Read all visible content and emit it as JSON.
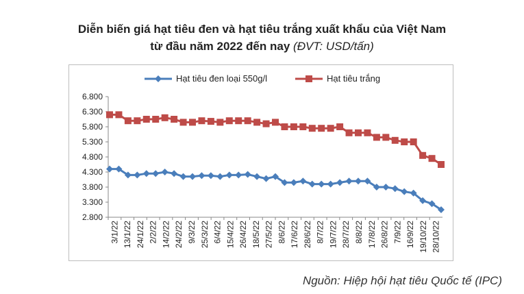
{
  "title": {
    "line1": "Diễn biến giá hạt tiêu đen và hạt tiêu trắng xuất khẩu của Việt Nam",
    "line2": "từ đầu năm 2022 đến nay",
    "unit": "(ĐVT: USD/tấn)"
  },
  "source": "Nguồn: Hiệp hội hạt tiêu Quốc tế (IPC)",
  "chart_data": {
    "type": "line",
    "legend_position": "top",
    "grid": false,
    "ylim": [
      2800,
      6800
    ],
    "y_ticks": [
      2800,
      3300,
      3800,
      4300,
      4800,
      5300,
      5800,
      6300,
      6800
    ],
    "y_tick_labels": [
      "2.800",
      "3.300",
      "3.800",
      "4.300",
      "4.800",
      "5.300",
      "5.800",
      "6.300",
      "6.800"
    ],
    "x_tick_labels": [
      "3/1/22",
      "13/1/22",
      "24/1/22",
      "2/2/22",
      "14/2/22",
      "24/2/22",
      "9/3/22",
      "25/3/22",
      "6/4/22",
      "15/4/22",
      "26/4/22",
      "18/5/22",
      "27/5/22",
      "8/6/22",
      "17/6/22",
      "28/6/22",
      "8/7/22",
      "19/7/22",
      "28/7/22",
      "8/8/22",
      "17/8/22",
      "26/8/22",
      "7/9/22",
      "16/9/22",
      "19/10/22",
      "28/10/22"
    ],
    "series": [
      {
        "name": "Hạt tiêu đen loại 550g/l",
        "color": "#4A7EBB",
        "marker": "diamond",
        "values": [
          4400,
          4400,
          4200,
          4200,
          4250,
          4250,
          4300,
          4250,
          4150,
          4150,
          4180,
          4180,
          4150,
          4200,
          4200,
          4220,
          4150,
          4080,
          4150,
          3950,
          3950,
          4000,
          3900,
          3900,
          3900,
          3950,
          4000,
          4000,
          4000,
          3800,
          3800,
          3750,
          3650,
          3600,
          3350,
          3250,
          3050
        ]
      },
      {
        "name": "Hạt tiêu trắng",
        "color": "#BE4B48",
        "marker": "square",
        "values": [
          6200,
          6200,
          6000,
          6000,
          6050,
          6050,
          6100,
          6050,
          5950,
          5950,
          6000,
          5980,
          5950,
          6000,
          6000,
          6000,
          5950,
          5900,
          5950,
          5800,
          5800,
          5800,
          5750,
          5750,
          5750,
          5800,
          5600,
          5600,
          5600,
          5450,
          5450,
          5350,
          5300,
          5300,
          4850,
          4750,
          4550
        ]
      }
    ]
  }
}
